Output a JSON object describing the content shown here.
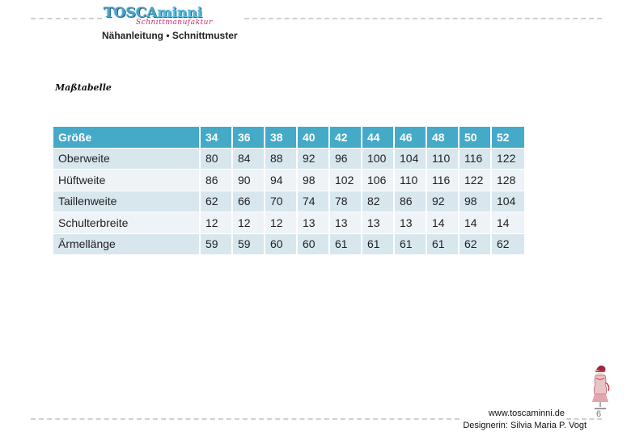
{
  "header": {
    "logo_main_a": "TOSCA",
    "logo_main_b": "minni",
    "logo_sub": "Schnittmanufaktur",
    "subtitle": "Nähanleitung • Schnittmuster"
  },
  "section_title": "Maßtabelle",
  "table": {
    "header": [
      "Größe",
      "34",
      "36",
      "38",
      "40",
      "42",
      "44",
      "46",
      "48",
      "50",
      "52"
    ],
    "rows": [
      [
        "Oberweite",
        "80",
        "84",
        "88",
        "92",
        "96",
        "100",
        "104",
        "110",
        "116",
        "122"
      ],
      [
        "Hüftweite",
        "86",
        "90",
        "94",
        "98",
        "102",
        "106",
        "110",
        "116",
        "122",
        "128"
      ],
      [
        "Taillenweite",
        "62",
        "66",
        "70",
        "74",
        "78",
        "82",
        "86",
        "92",
        "98",
        "104"
      ],
      [
        "Schulterbreite",
        "12",
        "12",
        "12",
        "13",
        "13",
        "13",
        "13",
        "14",
        "14",
        "14"
      ],
      [
        "Ärmellänge",
        "59",
        "59",
        "60",
        "60",
        "61",
        "61",
        "61",
        "61",
        "62",
        "62"
      ]
    ]
  },
  "footer": {
    "url": "www.toscaminni.de",
    "designer": "Designerin: Silvia Maria P. Vogt",
    "page_number": "6"
  },
  "colors": {
    "header_accent": "#45aac8",
    "row_odd": "#d8e7ee",
    "row_even": "#edf3f6",
    "logo_blue": "#4aa3c9",
    "logo_pink": "#c0306f"
  },
  "icons": {
    "corner_illustration": "dress-form-icon"
  }
}
